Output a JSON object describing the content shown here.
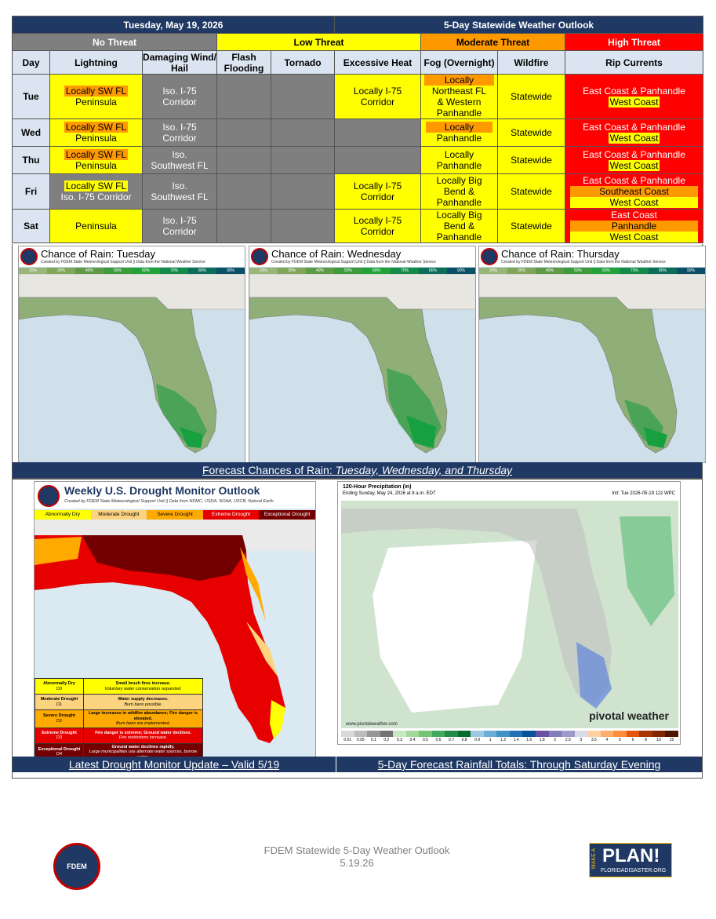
{
  "header": {
    "date": "Tuesday, May 19, 2026",
    "title": "5-Day Statewide Weather Outlook"
  },
  "legend": [
    "No Threat",
    "Low Threat",
    "Moderate Threat",
    "High Threat"
  ],
  "columns": [
    "Day",
    "Lightning",
    "Damaging Wind/ Hail",
    "Flash Flooding",
    "Tornado",
    "Excessive Heat",
    "Fog (Overnight)",
    "Wildfire",
    "Rip Currents"
  ],
  "rows": [
    {
      "day": "Tue",
      "lightning": [
        "Locally SW FL",
        "Peninsula"
      ],
      "wind": [
        "Iso. I-75",
        "Corridor"
      ],
      "heat": [
        "Locally I-75",
        "Corridor"
      ],
      "fog": [
        "Locally",
        "Northeast FL",
        "& Western",
        "Panhandle"
      ],
      "wildfire": "Statewide",
      "rip": [
        "East Coast & Panhandle",
        "West Coast"
      ]
    },
    {
      "day": "Wed",
      "lightning": [
        "Locally SW FL",
        "Peninsula"
      ],
      "wind": [
        "Iso. I-75",
        "Corridor"
      ],
      "fog": [
        "Locally",
        "Panhandle"
      ],
      "wildfire": "Statewide",
      "rip": [
        "East Coast & Panhandle",
        "West Coast"
      ]
    },
    {
      "day": "Thu",
      "lightning": [
        "Locally SW FL",
        "Peninsula"
      ],
      "wind": [
        "Iso.",
        "Southwest FL"
      ],
      "fog": [
        "Locally",
        "Panhandle"
      ],
      "wildfire": "Statewide",
      "rip": [
        "East Coast & Panhandle",
        "West Coast"
      ]
    },
    {
      "day": "Fri",
      "lightning": [
        "Locally SW FL",
        "Iso. I-75 Corridor"
      ],
      "wind": [
        "Iso.",
        "Southwest FL"
      ],
      "heat": [
        "Locally I-75",
        "Corridor"
      ],
      "fog": [
        "Locally Big",
        "Bend &",
        "Panhandle"
      ],
      "wildfire": "Statewide",
      "rip": [
        "East Coast & Panhandle",
        "Southeast Coast",
        "West Coast"
      ]
    },
    {
      "day": "Sat",
      "lightning": [
        "Peninsula"
      ],
      "wind": [
        "Iso. I-75",
        "Corridor"
      ],
      "heat": [
        "Locally I-75",
        "Corridor"
      ],
      "fog": [
        "Locally Big",
        "Bend &",
        "Panhandle"
      ],
      "wildfire": "Statewide",
      "rip": [
        "East Coast",
        "Panhandle",
        "West Coast"
      ]
    }
  ],
  "rain_maps": {
    "titles": [
      "Chance of Rain: Tuesday",
      "Chance of Rain: Wednesday",
      "Chance of Rain: Thursday"
    ],
    "credit": "Created by FDEM State Meteorological Support Unit || Data from the National Weather Service",
    "scale": [
      "20%",
      "30%",
      "40%",
      "50%",
      "60%",
      "70%",
      "80%",
      "90%"
    ],
    "caption_prefix": "Forecast Chances of Rain: ",
    "caption_days": "Tuesday, Wednesday, and Thursday"
  },
  "drought": {
    "title": "Weekly U.S. Drought Monitor Outlook",
    "credit": "Created by FDEM State Meteorological Support Unit || Data from NDMC, USDA, NOAA, USCB, Natural Earth",
    "legend": [
      "Abnormally Dry",
      "Moderate Drought",
      "Severe Drought",
      "Extreme Drought",
      "Exceptional Drought"
    ],
    "table": [
      {
        "name": "Abnormally Dry",
        "code": "D0",
        "desc": "Small brush fires increase.",
        "note": "Voluntary water conservation requested."
      },
      {
        "name": "Moderate Drought",
        "code": "D1",
        "desc": "Water supply decreases.",
        "note": "Burn bans possible."
      },
      {
        "name": "Severe Drought",
        "code": "D2",
        "desc": "Large increases in wildfire abundance; Fire danger is elevated.",
        "note": "Burn bans are implemented."
      },
      {
        "name": "Extreme Drought",
        "code": "D3",
        "desc": "Fire danger is extreme; Ground water declines.",
        "note": "Fire restrictions increase."
      },
      {
        "name": "Exceptional Drought",
        "code": "D4",
        "desc": "Ground water declines rapidly.",
        "note": "Large municipalities use alternate water sources, borrow water."
      }
    ],
    "caption": "Latest Drought Monitor Update – Valid 5/19"
  },
  "precip": {
    "title": "120-Hour Precipitation (in)",
    "ending": "Ending Sunday, May 24, 2026 at 8 a.m. EDT",
    "init": "Init: Tue 2026-05-19 12z WPC",
    "url": "www.pivotalweather.com",
    "brand": "pivotal weather",
    "ticks": [
      "0.01",
      "0.05",
      "0.1",
      "0.2",
      "0.3",
      "0.4",
      "0.5",
      "0.6",
      "0.7",
      "0.8",
      "0.9",
      "1",
      "1.2",
      "1.4",
      "1.6",
      "1.8",
      "2",
      "2.5",
      "3",
      "3.5",
      "4",
      "5",
      "6",
      "8",
      "10",
      "15"
    ],
    "caption": "5-Day Forecast Rainfall Totals: Through Saturday Evening"
  },
  "footer": {
    "line1": "FDEM Statewide 5-Day Weather Outlook",
    "line2": "5.19.26",
    "logo": "FDEM",
    "plan": "PLAN!",
    "make": "MAKE A",
    "site": "FLORIDADISASTER.ORG"
  },
  "colors": {
    "navy": "#1f3864",
    "low": "#ffff00",
    "moderate": "#ff9900",
    "high": "#ff0000",
    "none": "#7f7f7f"
  }
}
